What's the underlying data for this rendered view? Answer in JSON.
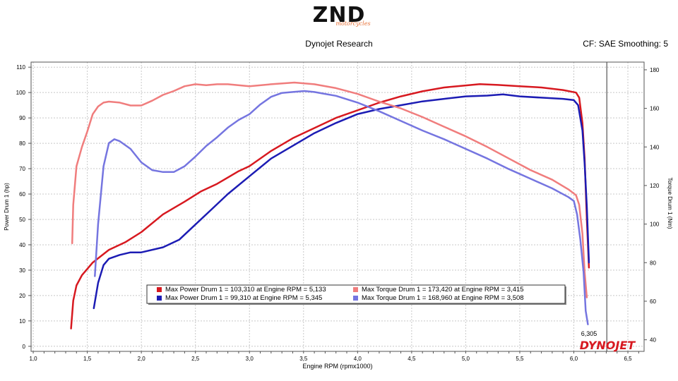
{
  "header": {
    "logo_text": "ZND",
    "logo_subtext": "motorcycles",
    "subtitle": "Dynojet Research",
    "cf_info": "CF: SAE Smoothing: 5",
    "brand_watermark": "DYNOJET"
  },
  "chart_data": {
    "type": "line",
    "xlabel": "Engine RPM (rpmx1000)",
    "ylabel_left": "Power Drum 1 (hp)",
    "ylabel_right": "Torque Drum 1 (Nm)",
    "xlim": [
      0.98,
      6.65
    ],
    "ylim_left": [
      -2,
      112
    ],
    "ylim_right": [
      34,
      184
    ],
    "x_ticks": [
      "1,0",
      "1,5",
      "2,0",
      "2,5",
      "3,0",
      "3,5",
      "4,0",
      "4,5",
      "5,0",
      "5,5",
      "6,0",
      "6,5"
    ],
    "x_tick_values": [
      1,
      1.5,
      2,
      2.5,
      3,
      3.5,
      4,
      4.5,
      5,
      5.5,
      6,
      6.5
    ],
    "y_ticks_left": [
      0,
      10,
      20,
      30,
      40,
      50,
      60,
      70,
      80,
      90,
      100,
      110
    ],
    "y_ticks_right": [
      40,
      60,
      80,
      100,
      120,
      140,
      160,
      180
    ],
    "marker": {
      "x": 6.305,
      "label": "6,305"
    },
    "grid": true,
    "legend_position": "bottom-center",
    "series": [
      {
        "name": "Max Power Drum 1 = 103,310 at Engine RPM = 5,133",
        "axis": "left",
        "color": "#d71920",
        "width": 2.5,
        "points": [
          [
            1.35,
            7
          ],
          [
            1.37,
            18
          ],
          [
            1.4,
            24
          ],
          [
            1.45,
            28
          ],
          [
            1.55,
            33
          ],
          [
            1.7,
            38
          ],
          [
            1.85,
            41
          ],
          [
            2.0,
            45
          ],
          [
            2.2,
            52
          ],
          [
            2.4,
            57
          ],
          [
            2.55,
            61
          ],
          [
            2.7,
            64
          ],
          [
            2.9,
            69
          ],
          [
            3.0,
            71
          ],
          [
            3.2,
            77
          ],
          [
            3.4,
            82
          ],
          [
            3.6,
            86
          ],
          [
            3.8,
            90
          ],
          [
            4.0,
            93
          ],
          [
            4.2,
            96
          ],
          [
            4.4,
            98.5
          ],
          [
            4.6,
            100.5
          ],
          [
            4.8,
            102
          ],
          [
            5.0,
            102.8
          ],
          [
            5.13,
            103.3
          ],
          [
            5.3,
            103
          ],
          [
            5.5,
            102.5
          ],
          [
            5.7,
            102
          ],
          [
            5.9,
            101
          ],
          [
            6.02,
            100
          ],
          [
            6.05,
            98
          ],
          [
            6.08,
            88
          ],
          [
            6.1,
            74
          ],
          [
            6.12,
            50
          ],
          [
            6.14,
            31
          ]
        ]
      },
      {
        "name": "Max Power Drum 1 = 99,310 at Engine RPM = 5,345",
        "axis": "left",
        "color": "#1c1cb4",
        "width": 2.5,
        "points": [
          [
            1.56,
            15
          ],
          [
            1.6,
            25
          ],
          [
            1.65,
            32
          ],
          [
            1.7,
            34.5
          ],
          [
            1.8,
            36
          ],
          [
            1.9,
            37
          ],
          [
            2.0,
            37
          ],
          [
            2.2,
            39
          ],
          [
            2.35,
            42
          ],
          [
            2.5,
            48
          ],
          [
            2.65,
            54
          ],
          [
            2.8,
            60
          ],
          [
            3.0,
            67
          ],
          [
            3.2,
            74
          ],
          [
            3.4,
            79
          ],
          [
            3.6,
            84
          ],
          [
            3.8,
            88
          ],
          [
            4.0,
            91.5
          ],
          [
            4.2,
            93.5
          ],
          [
            4.4,
            95
          ],
          [
            4.6,
            96.5
          ],
          [
            4.8,
            97.5
          ],
          [
            5.0,
            98.5
          ],
          [
            5.2,
            98.8
          ],
          [
            5.345,
            99.3
          ],
          [
            5.5,
            98.5
          ],
          [
            5.7,
            98
          ],
          [
            5.9,
            97.5
          ],
          [
            6.0,
            97
          ],
          [
            6.04,
            95
          ],
          [
            6.08,
            85
          ],
          [
            6.1,
            72
          ],
          [
            6.12,
            55
          ],
          [
            6.14,
            33
          ]
        ]
      },
      {
        "name": "Max Torque Drum 1 = 173,420 at Engine RPM = 3,415",
        "axis": "right",
        "color": "#f07d7d",
        "width": 2.5,
        "points": [
          [
            1.36,
            90
          ],
          [
            1.37,
            110
          ],
          [
            1.4,
            130
          ],
          [
            1.45,
            140
          ],
          [
            1.5,
            148
          ],
          [
            1.55,
            157
          ],
          [
            1.6,
            161
          ],
          [
            1.65,
            163
          ],
          [
            1.7,
            163.5
          ],
          [
            1.8,
            163
          ],
          [
            1.9,
            161.5
          ],
          [
            2.0,
            161.5
          ],
          [
            2.1,
            164
          ],
          [
            2.2,
            167
          ],
          [
            2.3,
            169
          ],
          [
            2.4,
            171.5
          ],
          [
            2.5,
            172.5
          ],
          [
            2.6,
            172
          ],
          [
            2.7,
            172.5
          ],
          [
            2.8,
            172.5
          ],
          [
            3.0,
            171.5
          ],
          [
            3.2,
            172.5
          ],
          [
            3.415,
            173.4
          ],
          [
            3.6,
            172.5
          ],
          [
            3.8,
            170.5
          ],
          [
            4.0,
            167.5
          ],
          [
            4.2,
            163.5
          ],
          [
            4.4,
            160
          ],
          [
            4.6,
            155.5
          ],
          [
            4.8,
            150.5
          ],
          [
            5.0,
            145.5
          ],
          [
            5.2,
            140
          ],
          [
            5.4,
            134
          ],
          [
            5.6,
            128
          ],
          [
            5.8,
            123
          ],
          [
            5.95,
            118
          ],
          [
            6.02,
            115
          ],
          [
            6.05,
            110
          ],
          [
            6.08,
            95
          ],
          [
            6.1,
            75
          ],
          [
            6.12,
            62
          ]
        ]
      },
      {
        "name": "Max Torque Drum 1 = 168,960 at Engine RPM = 3,508",
        "axis": "right",
        "color": "#7575e0",
        "width": 2.5,
        "points": [
          [
            1.57,
            73
          ],
          [
            1.6,
            100
          ],
          [
            1.65,
            130
          ],
          [
            1.7,
            142
          ],
          [
            1.75,
            144
          ],
          [
            1.8,
            143
          ],
          [
            1.9,
            139
          ],
          [
            2.0,
            132
          ],
          [
            2.1,
            128
          ],
          [
            2.2,
            127
          ],
          [
            2.3,
            127
          ],
          [
            2.4,
            130
          ],
          [
            2.5,
            135
          ],
          [
            2.6,
            140.5
          ],
          [
            2.7,
            145
          ],
          [
            2.8,
            150
          ],
          [
            2.9,
            154
          ],
          [
            3.0,
            157
          ],
          [
            3.1,
            162
          ],
          [
            3.2,
            166
          ],
          [
            3.3,
            168
          ],
          [
            3.4,
            168.5
          ],
          [
            3.508,
            169
          ],
          [
            3.6,
            168.5
          ],
          [
            3.7,
            167.5
          ],
          [
            3.8,
            166.5
          ],
          [
            4.0,
            163
          ],
          [
            4.2,
            158.5
          ],
          [
            4.4,
            153.5
          ],
          [
            4.6,
            148.5
          ],
          [
            4.8,
            144
          ],
          [
            5.0,
            139
          ],
          [
            5.2,
            134
          ],
          [
            5.4,
            128.5
          ],
          [
            5.6,
            123.5
          ],
          [
            5.8,
            118.5
          ],
          [
            5.95,
            114
          ],
          [
            6.0,
            112
          ],
          [
            6.03,
            105
          ],
          [
            6.06,
            92
          ],
          [
            6.09,
            75
          ],
          [
            6.11,
            55
          ],
          [
            6.13,
            48
          ]
        ]
      }
    ]
  }
}
